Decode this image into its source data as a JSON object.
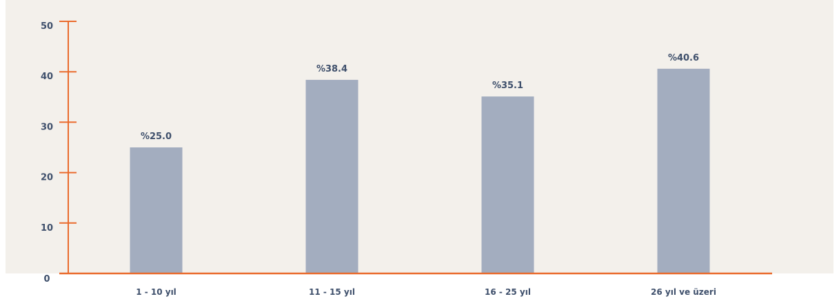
{
  "chart_data": {
    "type": "bar",
    "categories": [
      "1 - 10 yıl",
      "11 - 15 yıl",
      "16 - 25 yıl",
      "26 yıl ve üzeri"
    ],
    "values": [
      25.0,
      38.4,
      35.1,
      40.6
    ],
    "data_labels": [
      "%25.0",
      "%38.4",
      "%35.1",
      "%40.6"
    ],
    "yticks": [
      0,
      10,
      20,
      30,
      40,
      50
    ],
    "ylim": [
      0,
      50
    ],
    "title": "",
    "xlabel": "",
    "ylabel": "",
    "grid": false,
    "colors": {
      "background": "#f3f0eb",
      "bar": "#a3adbf",
      "axis": "#ea6a2c",
      "text": "#3e4f6b"
    }
  }
}
